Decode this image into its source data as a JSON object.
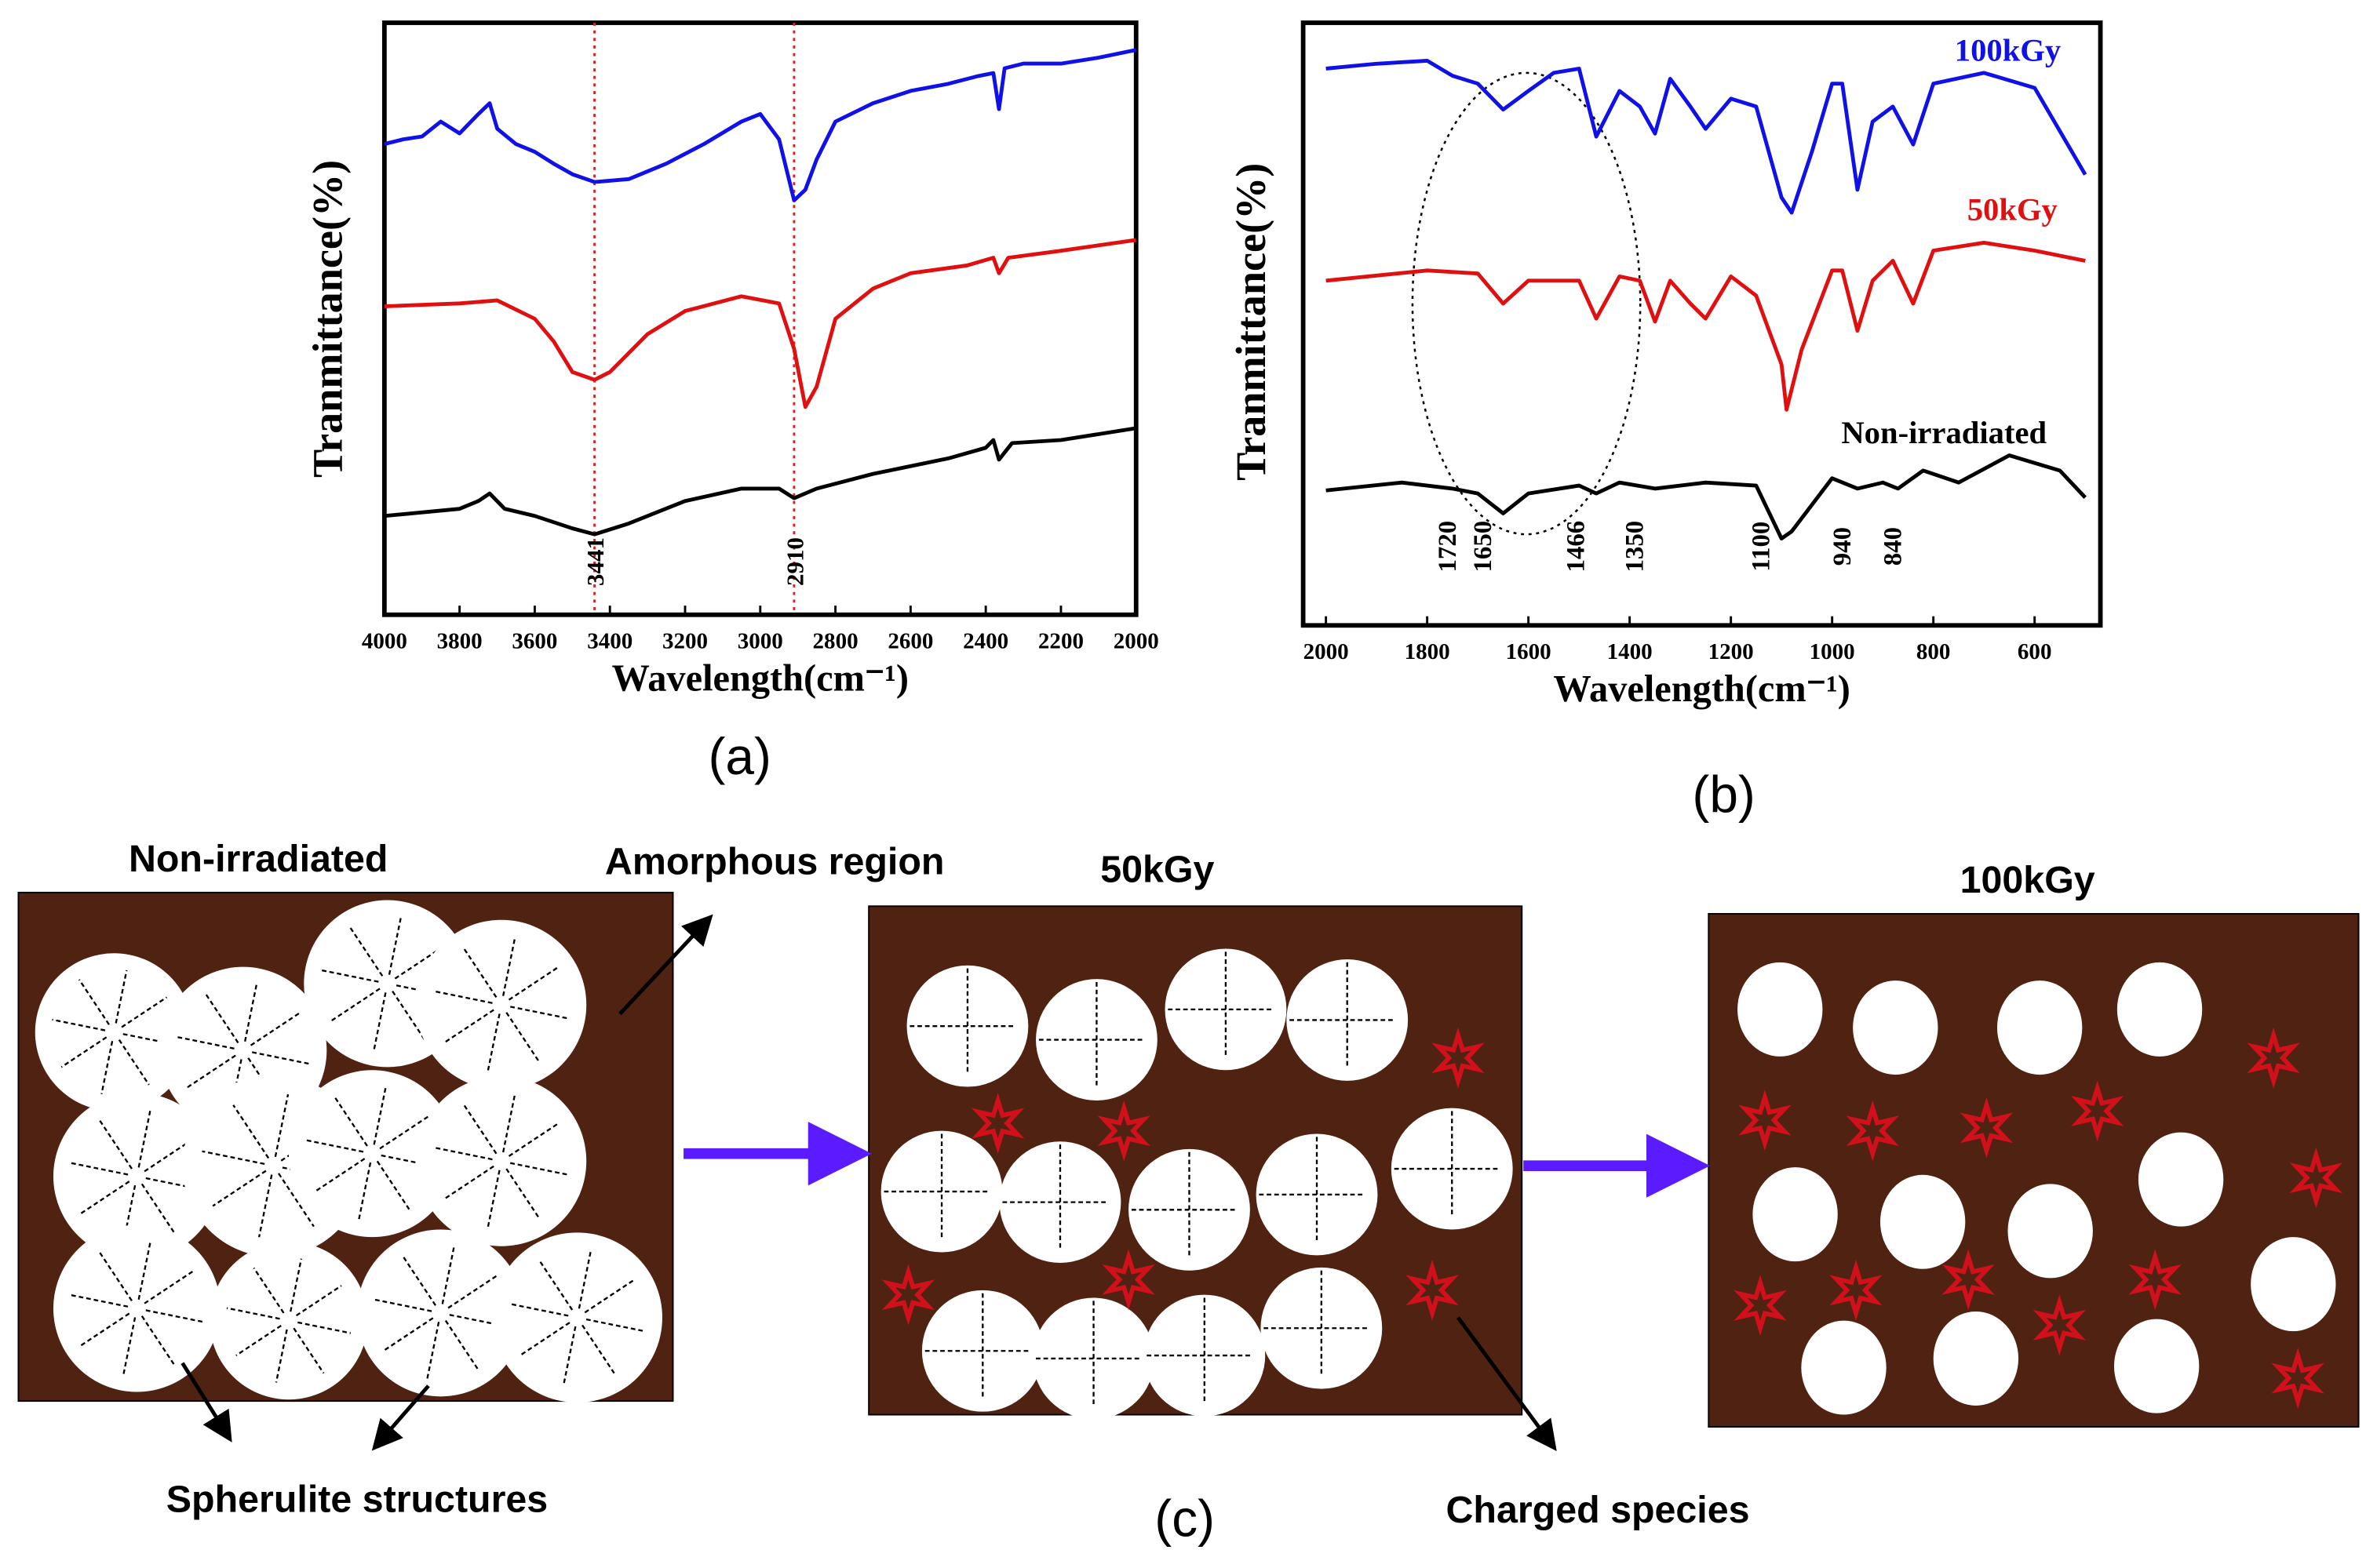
{
  "chart_data": [
    {
      "type": "line",
      "caption": "(a)",
      "ylabel": "Tranmittance(%)",
      "xlabel": "Wavelength(cm⁻¹)",
      "xlim": [
        4000,
        2000
      ],
      "xticks": [
        4000,
        3800,
        3600,
        3400,
        3200,
        3000,
        2800,
        2600,
        2400,
        2200,
        2000
      ],
      "ylim": [
        0,
        100
      ],
      "markers": [
        3441,
        2910
      ],
      "marker_color": "#e02020",
      "series": [
        {
          "color": "#1010e8",
          "x": [
            4000,
            3950,
            3900,
            3850,
            3800,
            3750,
            3720,
            3700,
            3650,
            3600,
            3550,
            3500,
            3441,
            3350,
            3250,
            3150,
            3050,
            3000,
            2950,
            2910,
            2880,
            2850,
            2800,
            2700,
            2600,
            2500,
            2420,
            2380,
            2365,
            2350,
            2300,
            2200,
            2100,
            2000
          ],
          "values": [
            79.5,
            80.3,
            80.8,
            83.3,
            81.3,
            84.6,
            86.4,
            82.1,
            79.5,
            78.2,
            76.2,
            74.4,
            73.1,
            73.6,
            76.2,
            79.5,
            83.3,
            84.6,
            80.3,
            70.0,
            71.8,
            76.9,
            83.3,
            86.4,
            88.5,
            89.7,
            91.0,
            91.5,
            85.4,
            92.3,
            93.1,
            93.1,
            94.1,
            95.4
          ]
        },
        {
          "color": "#e01010",
          "x": [
            4000,
            3800,
            3700,
            3600,
            3550,
            3500,
            3441,
            3400,
            3300,
            3200,
            3050,
            2950,
            2910,
            2880,
            2850,
            2800,
            2700,
            2600,
            2450,
            2380,
            2365,
            2340,
            2200,
            2000
          ],
          "values": [
            52.1,
            52.6,
            53.1,
            50.0,
            46.2,
            41.0,
            39.7,
            41.0,
            47.4,
            51.3,
            53.8,
            52.6,
            44.9,
            35.1,
            38.5,
            50.0,
            55.1,
            57.7,
            59.0,
            60.3,
            57.7,
            60.3,
            61.5,
            63.3
          ]
        },
        {
          "color": "#000000",
          "x": [
            4000,
            3800,
            3750,
            3720,
            3680,
            3600,
            3500,
            3441,
            3350,
            3200,
            3050,
            2950,
            2910,
            2850,
            2700,
            2500,
            2400,
            2380,
            2365,
            2330,
            2200,
            2000
          ],
          "values": [
            16.7,
            17.9,
            19.2,
            20.5,
            17.9,
            16.7,
            14.6,
            13.6,
            15.4,
            19.2,
            21.3,
            21.3,
            19.7,
            21.3,
            23.8,
            26.4,
            28.2,
            29.5,
            26.2,
            29.0,
            29.5,
            31.5
          ]
        }
      ]
    },
    {
      "type": "line",
      "caption": "(b)",
      "ylabel": "Tranmittance(%)",
      "xlabel": "Wavelength(cm⁻¹)",
      "xlim": [
        2045,
        470
      ],
      "xticks": [
        2000,
        1800,
        1600,
        1400,
        1200,
        1000,
        800,
        600
      ],
      "ylim": [
        0,
        100
      ],
      "peak_labels": [
        1720,
        1650,
        1466,
        1350,
        1100,
        940,
        840
      ],
      "series": [
        {
          "name": "100kGy",
          "color": "#1010e8",
          "x": [
            2000,
            1900,
            1800,
            1750,
            1700,
            1650,
            1600,
            1550,
            1500,
            1466,
            1420,
            1380,
            1350,
            1320,
            1280,
            1250,
            1200,
            1150,
            1100,
            1080,
            1040,
            1000,
            980,
            950,
            920,
            880,
            840,
            800,
            700,
            600,
            500
          ],
          "values": [
            92.4,
            93.2,
            93.7,
            91.2,
            89.9,
            85.6,
            88.7,
            91.7,
            92.4,
            81.1,
            88.7,
            86.1,
            81.6,
            90.7,
            86.1,
            82.4,
            87.4,
            86.1,
            71.0,
            68.5,
            78.6,
            89.9,
            89.9,
            72.3,
            83.6,
            86.1,
            79.8,
            89.9,
            91.7,
            89.2,
            74.8
          ]
        },
        {
          "name": "50kGy",
          "color": "#e01010",
          "x": [
            2000,
            1800,
            1700,
            1650,
            1600,
            1500,
            1466,
            1420,
            1380,
            1350,
            1320,
            1280,
            1250,
            1200,
            1150,
            1100,
            1090,
            1060,
            1000,
            980,
            950,
            920,
            880,
            840,
            800,
            700,
            600,
            500
          ],
          "values": [
            57.2,
            58.9,
            58.4,
            53.4,
            57.2,
            57.2,
            50.9,
            57.9,
            57.2,
            50.4,
            57.2,
            53.4,
            50.9,
            57.9,
            54.7,
            43.3,
            35.8,
            45.8,
            58.9,
            58.9,
            48.9,
            57.2,
            60.5,
            53.4,
            62.2,
            63.5,
            62.2,
            60.5
          ]
        },
        {
          "name": "Non-irradiated",
          "color": "#000000",
          "x": [
            2000,
            1850,
            1750,
            1700,
            1650,
            1600,
            1500,
            1466,
            1420,
            1350,
            1250,
            1150,
            1100,
            1080,
            1000,
            950,
            900,
            870,
            820,
            750,
            650,
            550,
            500
          ],
          "values": [
            22.4,
            23.7,
            22.7,
            21.9,
            18.6,
            21.9,
            23.2,
            21.9,
            23.7,
            22.7,
            23.7,
            23.2,
            14.4,
            15.6,
            24.4,
            22.7,
            23.7,
            22.7,
            25.7,
            23.7,
            28.2,
            25.7,
            21.2
          ]
        }
      ]
    }
  ],
  "diagram": {
    "caption": "(c)",
    "stage_labels": [
      "Non-irradiated",
      "50kGy",
      "100kGy"
    ],
    "amorphous_label": "Amorphous region",
    "spherulite_label": "Spherulite structures",
    "charged_label": "Charged species"
  }
}
